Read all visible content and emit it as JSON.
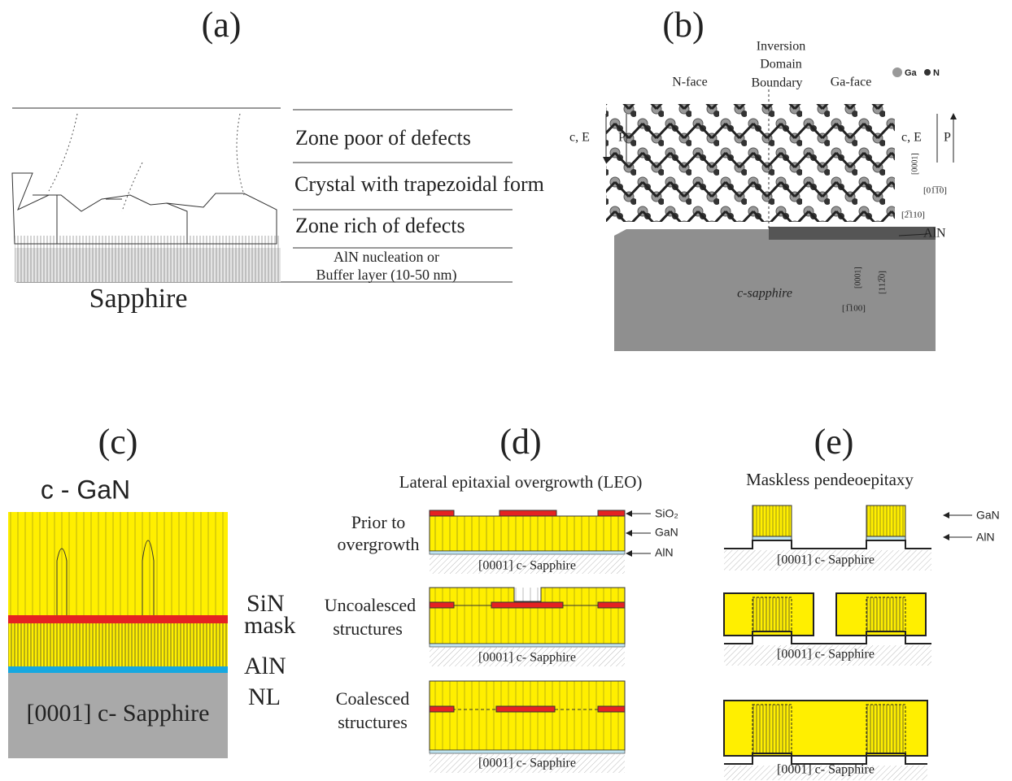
{
  "panel_a": {
    "label": "(a)",
    "zones": [
      "Zone poor of defects",
      "Crystal with trapezoidal form",
      "Zone rich of defects",
      "AlN nucleation or",
      "Buffer layer (10-50 nm)"
    ],
    "substrate": "Sapphire"
  },
  "panel_b": {
    "label": "(b)",
    "boundary": [
      "Inversion",
      "Domain",
      "Boundary"
    ],
    "n_face": "N-face",
    "ga_face": "Ga-face",
    "legend": [
      "Ga",
      "N"
    ],
    "polarity": "c, E",
    "p": "P",
    "aln": "AlN",
    "substrate": "c-sapphire",
    "directions": [
      "[0001]",
      "[01̅1̅0]",
      "[2̅110]",
      "[0001]",
      "[112̅0]",
      "[1̅100]"
    ]
  },
  "panel_c": {
    "label": "(c)",
    "title": "c - GaN",
    "layers": [
      "SiN",
      "mask",
      "AlN",
      "NL"
    ],
    "substrate": "[0001] c- Sapphire"
  },
  "panel_d": {
    "label": "(d)",
    "title": "Lateral epitaxial overgrowth (LEO)",
    "rows": [
      [
        "Prior to",
        "overgrowth"
      ],
      [
        "Uncoalesced",
        "structures"
      ],
      [
        "Coalesced",
        "structures"
      ]
    ],
    "layers": [
      "SiO₂",
      "GaN",
      "AlN"
    ],
    "substrate": "[0001] c- Sapphire"
  },
  "panel_e": {
    "label": "(e)",
    "title": "Maskless pendeoepitaxy",
    "layers": [
      "GaN",
      "AlN"
    ],
    "substrate": "[0001] c- Sapphire"
  }
}
